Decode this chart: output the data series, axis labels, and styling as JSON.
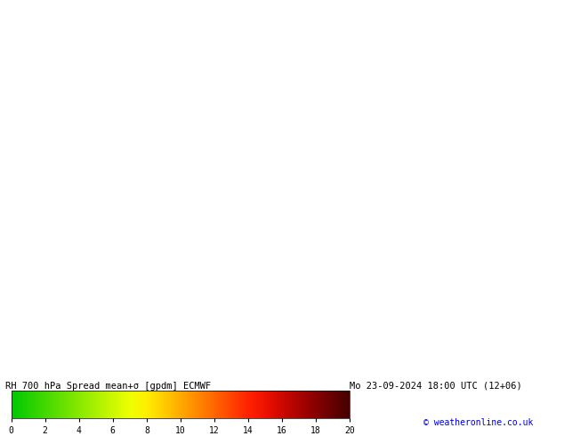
{
  "title_left": "RH 700 hPa Spread mean+σ [gpdm] ECMWF",
  "title_right": "Mo 23-09-2024 18:00 UTC (12+06)",
  "credit": "© weatheronline.co.uk",
  "colorbar_ticks": [
    0,
    2,
    4,
    6,
    8,
    10,
    12,
    14,
    16,
    18,
    20
  ],
  "colorbar_colors": [
    "#00c800",
    "#22d000",
    "#44d800",
    "#66e000",
    "#88e800",
    "#aaf000",
    "#ccf800",
    "#eeff00",
    "#ffee00",
    "#ffcc00",
    "#ffaa00",
    "#ff8800",
    "#ff6600",
    "#ff4400",
    "#ff2200",
    "#ee1100",
    "#cc0800",
    "#aa0400",
    "#880000",
    "#660000",
    "#440000"
  ],
  "bg_color": "#00ff00",
  "map_bg": "#00ff00",
  "land_color": "#aaaaaa",
  "canada_border_color": "#c8c8c8",
  "us_state_color": "#000080",
  "fig_width": 6.34,
  "fig_height": 4.9,
  "dpi": 100
}
